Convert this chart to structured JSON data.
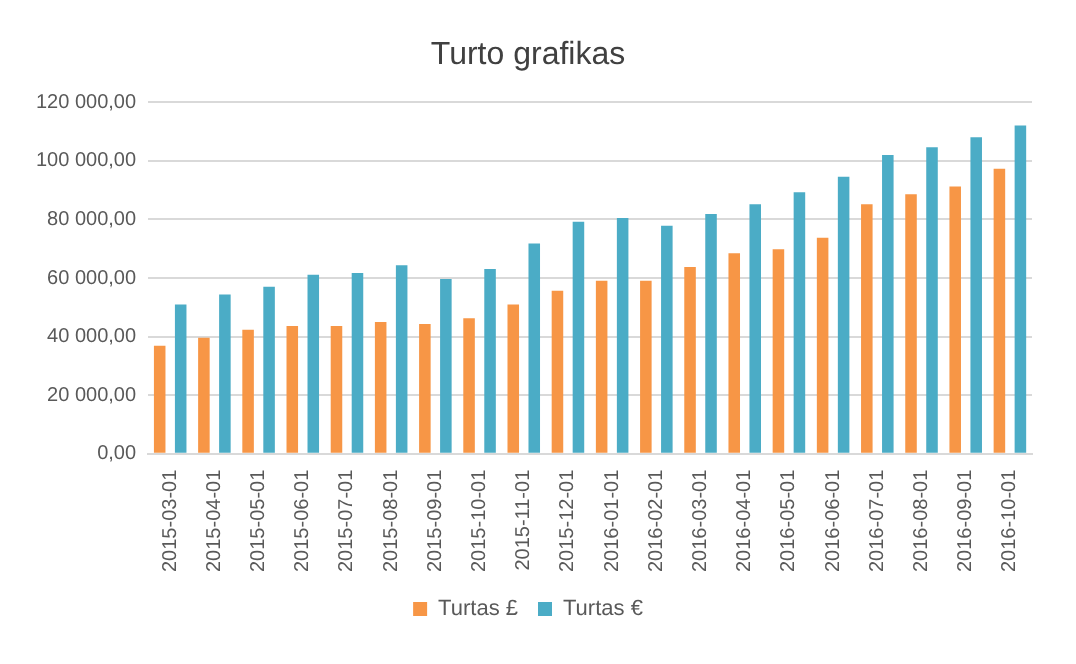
{
  "chart_data": {
    "type": "bar",
    "title": "Turto grafikas",
    "categories": [
      "2015-03-01",
      "2015-04-01",
      "2015-05-01",
      "2015-06-01",
      "2015-07-01",
      "2015-08-01",
      "2015-09-01",
      "2015-10-01",
      "2015-11-01",
      "2015-12-01",
      "2016-01-01",
      "2016-02-01",
      "2016-03-01",
      "2016-04-01",
      "2016-05-01",
      "2016-06-01",
      "2016-07-01",
      "2016-08-01",
      "2016-09-01",
      "2016-10-01"
    ],
    "series": [
      {
        "name": "Turtas £",
        "color": "#f79646",
        "values": [
          36900,
          39600,
          42300,
          43600,
          43600,
          45000,
          44300,
          46300,
          51000,
          55700,
          59100,
          59100,
          63800,
          68500,
          69800,
          73800,
          85200,
          88600,
          91300,
          97300
        ]
      },
      {
        "name": "Turtas €",
        "color": "#4bacc6",
        "values": [
          51000,
          54400,
          57000,
          61100,
          61700,
          64400,
          59700,
          63100,
          71800,
          79200,
          80500,
          77900,
          81900,
          85200,
          89300,
          94600,
          102000,
          104700,
          108100,
          112100
        ]
      }
    ],
    "ylim": [
      0,
      120000
    ],
    "yticks": [
      {
        "value": 0,
        "label": "0,00"
      },
      {
        "value": 20000,
        "label": "20 000,00"
      },
      {
        "value": 40000,
        "label": "40 000,00"
      },
      {
        "value": 60000,
        "label": "60 000,00"
      },
      {
        "value": 80000,
        "label": "80 000,00"
      },
      {
        "value": 100000,
        "label": "100 000,00"
      },
      {
        "value": 120000,
        "label": "120 000,00"
      }
    ],
    "grid": "y",
    "legend": "bottom"
  }
}
